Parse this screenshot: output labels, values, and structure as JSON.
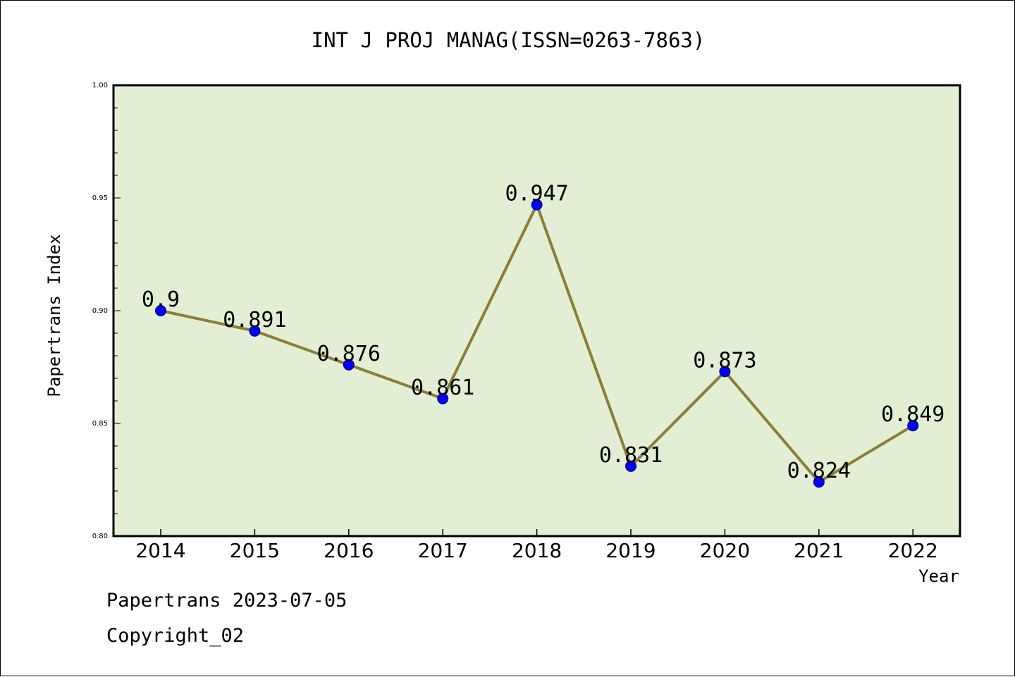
{
  "chart_data": {
    "type": "line",
    "title": "INT J PROJ MANAG(ISSN=0263-7863)",
    "xlabel": "Year",
    "ylabel": "Papertrans Index",
    "categories": [
      "2014",
      "2015",
      "2016",
      "2017",
      "2018",
      "2019",
      "2020",
      "2021",
      "2022"
    ],
    "series": [
      {
        "values": [
          0.9,
          0.891,
          0.876,
          0.861,
          0.947,
          0.831,
          0.873,
          0.824,
          0.849
        ],
        "labels": [
          "0.9",
          "0.891",
          "0.876",
          "0.861",
          "0.947",
          "0.831",
          "0.873",
          "0.824",
          "0.849"
        ],
        "line_color": "#8b7d3a",
        "marker_color": "#0000ff"
      }
    ],
    "ylim": [
      0.8,
      1.0
    ],
    "yticks": [
      "0.80",
      "0.85",
      "0.90",
      "0.95",
      "1.00"
    ],
    "plot_background": "#e2efd4",
    "grid": false,
    "legend": "none"
  },
  "footer": {
    "date": "Papertrans 2023-07-05",
    "copyright": "Copyright_02"
  }
}
